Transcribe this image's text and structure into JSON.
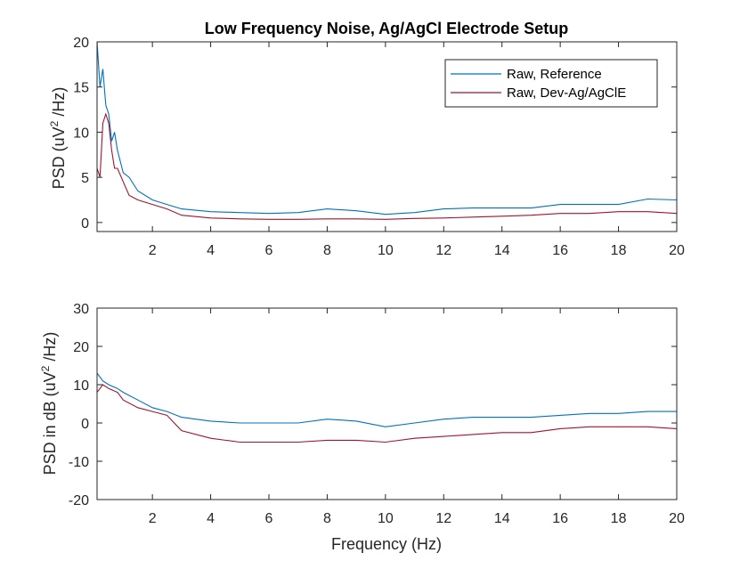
{
  "figure": {
    "title": "Low Frequency Noise, Ag/AgCl Electrode Setup",
    "xlabel": "Frequency (Hz)"
  },
  "colors": {
    "reference": "#0072BD",
    "device": "#A2142F",
    "axis": "#262626"
  },
  "chart_data": [
    {
      "type": "line",
      "title": "Low Frequency Noise, Ag/AgCl Electrode Setup",
      "ylabel_main": "PSD (uV",
      "ylabel_sup": "2",
      "ylabel_tail": " /Hz)",
      "xlim": [
        0.1,
        20
      ],
      "ylim": [
        -1,
        20
      ],
      "xticks": [
        2,
        4,
        6,
        8,
        10,
        12,
        14,
        16,
        18,
        20
      ],
      "yticks": [
        0,
        5,
        10,
        15,
        20
      ],
      "legend_position": "top-right",
      "grid": false,
      "series": [
        {
          "name": "Raw, Reference",
          "x": [
            0.1,
            0.2,
            0.3,
            0.4,
            0.5,
            0.6,
            0.7,
            0.8,
            1.0,
            1.2,
            1.5,
            2.0,
            2.5,
            3,
            4,
            5,
            6,
            7,
            8,
            9,
            10,
            11,
            12,
            13,
            14,
            15,
            16,
            17,
            18,
            19,
            20
          ],
          "values": [
            20,
            15,
            17,
            13,
            12,
            9,
            10,
            8,
            5.5,
            5,
            3.5,
            2.5,
            2,
            1.5,
            1.2,
            1.1,
            1.0,
            1.1,
            1.5,
            1.3,
            0.9,
            1.1,
            1.5,
            1.6,
            1.6,
            1.6,
            2,
            2,
            2,
            2.6,
            2.5
          ]
        },
        {
          "name": "Raw, Dev-Ag/AgClE",
          "x": [
            0.1,
            0.2,
            0.3,
            0.4,
            0.5,
            0.6,
            0.7,
            0.8,
            1.0,
            1.2,
            1.5,
            2.0,
            2.5,
            3,
            4,
            5,
            6,
            7,
            8,
            9,
            10,
            11,
            12,
            13,
            14,
            15,
            16,
            17,
            18,
            19,
            20
          ],
          "values": [
            6,
            5,
            11,
            12,
            11,
            8,
            6,
            6,
            4.5,
            3,
            2.5,
            2,
            1.5,
            0.8,
            0.5,
            0.4,
            0.35,
            0.35,
            0.4,
            0.4,
            0.35,
            0.45,
            0.5,
            0.6,
            0.7,
            0.8,
            1.0,
            1.0,
            1.2,
            1.2,
            1.0
          ]
        }
      ]
    },
    {
      "type": "line",
      "ylabel_main": "PSD in dB (uV",
      "ylabel_sup": "2",
      "ylabel_tail": " /Hz)",
      "xlim": [
        0.1,
        20
      ],
      "ylim": [
        -20,
        30
      ],
      "xticks": [
        2,
        4,
        6,
        8,
        10,
        12,
        14,
        16,
        18,
        20
      ],
      "yticks": [
        -20,
        -10,
        0,
        10,
        20,
        30
      ],
      "grid": false,
      "series": [
        {
          "name": "Raw, Reference",
          "x": [
            0.1,
            0.3,
            0.5,
            0.8,
            1.0,
            1.5,
            2.0,
            2.5,
            3,
            4,
            5,
            6,
            7,
            8,
            9,
            10,
            11,
            12,
            13,
            14,
            15,
            16,
            17,
            18,
            19,
            20
          ],
          "values": [
            13,
            11,
            10,
            9,
            8,
            6,
            4,
            3,
            1.5,
            0.5,
            0,
            0,
            0,
            1,
            0.5,
            -1,
            0,
            1,
            1.5,
            1.5,
            1.5,
            2,
            2.5,
            2.5,
            3,
            3
          ]
        },
        {
          "name": "Raw, Dev-Ag/AgClE",
          "x": [
            0.1,
            0.3,
            0.5,
            0.8,
            1.0,
            1.5,
            2.0,
            2.5,
            3,
            4,
            5,
            6,
            7,
            8,
            9,
            10,
            11,
            12,
            13,
            14,
            15,
            16,
            17,
            18,
            19,
            20
          ],
          "values": [
            8,
            10,
            9,
            8,
            6,
            4,
            3,
            2,
            -2,
            -4,
            -5,
            -5,
            -5,
            -4.5,
            -4.5,
            -5,
            -4,
            -3.5,
            -3,
            -2.5,
            -2.5,
            -1.5,
            -1,
            -1,
            -1,
            -1.5
          ]
        }
      ]
    }
  ]
}
